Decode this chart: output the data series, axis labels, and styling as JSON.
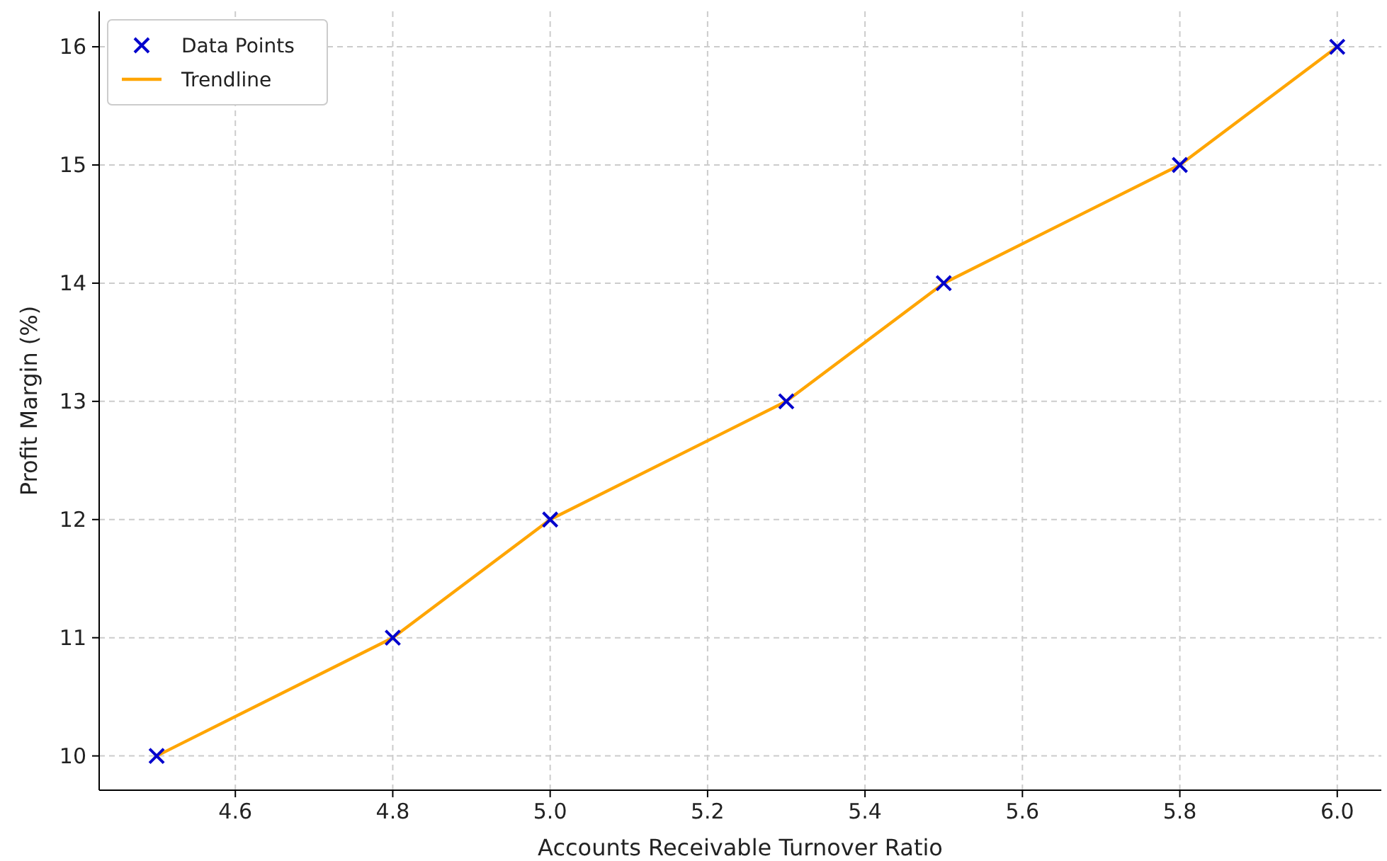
{
  "chart_data": {
    "type": "scatter",
    "xlabel": "Accounts Receivable Turnover Ratio",
    "ylabel": "Profit Margin (%)",
    "x": [
      4.5,
      4.8,
      5.0,
      5.3,
      5.5,
      5.8,
      6.0
    ],
    "series": [
      {
        "name": "Data Points",
        "color": "#0000cc",
        "marker": "cross",
        "values": [
          10,
          11,
          12,
          13,
          14,
          15,
          16
        ]
      },
      {
        "name": "Trendline",
        "type": "line",
        "color": "#ffa500",
        "line_style": "solid",
        "values": [
          10,
          11,
          12,
          13,
          14,
          15,
          16
        ]
      }
    ],
    "xlim": [
      4.427,
      6.056
    ],
    "xticks": [
      {
        "value": 4.6,
        "label": "4.6"
      },
      {
        "value": 4.8,
        "label": "4.8"
      },
      {
        "value": 5.0,
        "label": "5.0"
      },
      {
        "value": 5.2,
        "label": "5.2"
      },
      {
        "value": 5.4,
        "label": "5.4"
      },
      {
        "value": 5.6,
        "label": "5.6"
      },
      {
        "value": 5.8,
        "label": "5.8"
      },
      {
        "value": 6.0,
        "label": "6.0"
      }
    ],
    "ylim": [
      9.71,
      16.3
    ],
    "yticks": [
      10,
      11,
      12,
      13,
      14,
      15,
      16
    ],
    "grid": true,
    "legend": "top left"
  }
}
